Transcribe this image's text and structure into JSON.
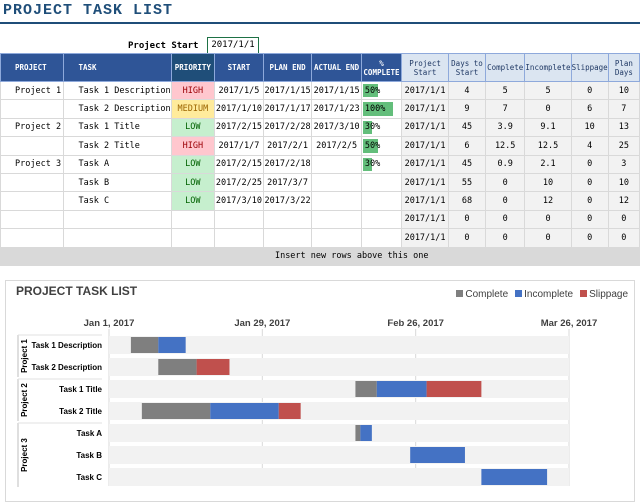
{
  "title": "PROJECT TASK LIST",
  "project_start": {
    "label": "Project Start",
    "value": "2017/1/1"
  },
  "headers": [
    "PROJECT",
    "TASK",
    "PRIORITY",
    "START",
    "PLAN END",
    "ACTUAL END",
    "% COMPLETE",
    "Project Start",
    "Days to Start",
    "Complete",
    "Incomplete",
    "Slippage",
    "Plan Days"
  ],
  "rows": [
    {
      "project": "Project 1",
      "task": "Task 1 Description",
      "priority": "HIGH",
      "prio_class": "high",
      "start": "2017/1/5",
      "plan_end": "2017/1/15",
      "actual_end": "2017/1/15",
      "pct": "50%",
      "pct_value": 0.5,
      "pstart": "2017/1/1",
      "days": "4",
      "complete": "5",
      "incomplete": "5",
      "slippage": "0",
      "plan_days": "10"
    },
    {
      "project": "",
      "task": "Task 2 Description",
      "priority": "MEDIUM",
      "prio_class": "medium",
      "start": "2017/1/10",
      "plan_end": "2017/1/17",
      "actual_end": "2017/1/23",
      "pct": "100%",
      "pct_value": 1.0,
      "pstart": "2017/1/1",
      "days": "9",
      "complete": "7",
      "incomplete": "0",
      "slippage": "6",
      "plan_days": "7"
    },
    {
      "project": "Project 2",
      "task": "Task 1 Title",
      "priority": "LOW",
      "prio_class": "low",
      "start": "2017/2/15",
      "plan_end": "2017/2/28",
      "actual_end": "2017/3/10",
      "pct": "30%",
      "pct_value": 0.3,
      "pstart": "2017/1/1",
      "days": "45",
      "complete": "3.9",
      "incomplete": "9.1",
      "slippage": "10",
      "plan_days": "13"
    },
    {
      "project": "",
      "task": "Task 2 Title",
      "priority": "HIGH",
      "prio_class": "high",
      "start": "2017/1/7",
      "plan_end": "2017/2/1",
      "actual_end": "2017/2/5",
      "pct": "50%",
      "pct_value": 0.5,
      "pstart": "2017/1/1",
      "days": "6",
      "complete": "12.5",
      "incomplete": "12.5",
      "slippage": "4",
      "plan_days": "25"
    },
    {
      "project": "Project 3",
      "task": "Task A",
      "priority": "LOW",
      "prio_class": "low",
      "start": "2017/2/15",
      "plan_end": "2017/2/18",
      "actual_end": "",
      "pct": "30%",
      "pct_value": 0.3,
      "pstart": "2017/1/1",
      "days": "45",
      "complete": "0.9",
      "incomplete": "2.1",
      "slippage": "0",
      "plan_days": "3"
    },
    {
      "project": "",
      "task": "Task B",
      "priority": "LOW",
      "prio_class": "low",
      "start": "2017/2/25",
      "plan_end": "2017/3/7",
      "actual_end": "",
      "pct": "",
      "pct_value": 0,
      "pstart": "2017/1/1",
      "days": "55",
      "complete": "0",
      "incomplete": "10",
      "slippage": "0",
      "plan_days": "10"
    },
    {
      "project": "",
      "task": "Task C",
      "priority": "LOW",
      "prio_class": "low",
      "start": "2017/3/10",
      "plan_end": "2017/3/22",
      "actual_end": "",
      "pct": "",
      "pct_value": 0,
      "pstart": "2017/1/1",
      "days": "68",
      "complete": "0",
      "incomplete": "12",
      "slippage": "0",
      "plan_days": "12"
    },
    {
      "project": "",
      "task": "",
      "priority": "",
      "prio_class": "",
      "start": "",
      "plan_end": "",
      "actual_end": "",
      "pct": "",
      "pct_value": 0,
      "pstart": "2017/1/1",
      "days": "0",
      "complete": "0",
      "incomplete": "0",
      "slippage": "0",
      "plan_days": "0"
    },
    {
      "project": "",
      "task": "",
      "priority": "",
      "prio_class": "",
      "start": "",
      "plan_end": "",
      "actual_end": "",
      "pct": "",
      "pct_value": 0,
      "pstart": "2017/1/1",
      "days": "0",
      "complete": "0",
      "incomplete": "0",
      "slippage": "0",
      "plan_days": "0"
    }
  ],
  "insert_note": "Insert new rows above this one",
  "colors": {
    "complete": "#7f7f7f",
    "incomplete": "#4472c4",
    "slippage": "#c0504d",
    "header": "#2f5597"
  },
  "chart_data": {
    "type": "bar",
    "stacked": true,
    "orientation": "horizontal",
    "title": "PROJECT TASK LIST",
    "legend_position": "top-right",
    "x_axis_dates": [
      "Jan 1, 2017",
      "Jan 29, 2017",
      "Feb 26, 2017",
      "Mar 26, 2017"
    ],
    "xlim": [
      0,
      84
    ],
    "groups": [
      {
        "name": "Project 1",
        "tasks": [
          "Task 1 Description",
          "Task 2 Description"
        ]
      },
      {
        "name": "Project 2",
        "tasks": [
          "Task 1 Title",
          "Task 2 Title"
        ]
      },
      {
        "name": "Project 3",
        "tasks": [
          "Task A",
          "Task B",
          "Task C"
        ]
      }
    ],
    "categories": [
      "Task 1 Description",
      "Task 2 Description",
      "Task 1 Title",
      "Task 2 Title",
      "Task A",
      "Task B",
      "Task C"
    ],
    "offset_days": [
      4,
      9,
      45,
      6,
      45,
      55,
      68
    ],
    "series": [
      {
        "name": "Complete",
        "values": [
          5,
          7,
          3.9,
          12.5,
          0.9,
          0,
          0
        ]
      },
      {
        "name": "Incomplete",
        "values": [
          5,
          0,
          9.1,
          12.5,
          2.1,
          10,
          12
        ]
      },
      {
        "name": "Slippage",
        "values": [
          0,
          6,
          10,
          4,
          0,
          0,
          0
        ]
      }
    ]
  }
}
